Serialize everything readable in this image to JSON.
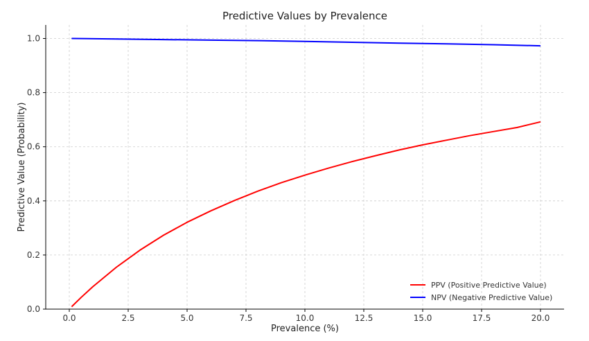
{
  "chart_data": {
    "type": "line",
    "title": "Predictive Values by Prevalence",
    "xlabel": "Prevalence (%)",
    "ylabel": "Predictive Value (Probability)",
    "xlim": [
      -1.0,
      21.0
    ],
    "ylim": [
      0.0,
      1.05
    ],
    "xticks": [
      0.0,
      2.5,
      5.0,
      7.5,
      10.0,
      12.5,
      15.0,
      17.5,
      20.0
    ],
    "xtick_labels": [
      "0.0",
      "2.5",
      "5.0",
      "7.5",
      "10.0",
      "12.5",
      "15.0",
      "17.5",
      "20.0"
    ],
    "yticks": [
      0.0,
      0.2,
      0.4,
      0.6,
      0.8,
      1.0
    ],
    "ytick_labels": [
      "0.0",
      "0.2",
      "0.4",
      "0.6",
      "0.8",
      "1.0"
    ],
    "grid": true,
    "legend_position": "bottom-right",
    "series": [
      {
        "name": "PPV (Positive Predictive Value)",
        "color": "#ff0000",
        "x": [
          0.1,
          0.5,
          1,
          2,
          3,
          4,
          5,
          6,
          7,
          8,
          9,
          10,
          11,
          12,
          13,
          14,
          15,
          16,
          17,
          18,
          19,
          20
        ],
        "y": [
          0.009,
          0.043,
          0.083,
          0.155,
          0.218,
          0.273,
          0.321,
          0.363,
          0.401,
          0.436,
          0.467,
          0.495,
          0.521,
          0.545,
          0.567,
          0.588,
          0.607,
          0.624,
          0.641,
          0.656,
          0.671,
          0.692
        ]
      },
      {
        "name": "NPV (Negative Predictive Value)",
        "color": "#0000ff",
        "x": [
          0.1,
          2,
          4,
          6,
          8,
          10,
          12,
          14,
          16,
          18,
          20
        ],
        "y": [
          1.0,
          0.998,
          0.996,
          0.994,
          0.992,
          0.989,
          0.986,
          0.983,
          0.98,
          0.977,
          0.973
        ]
      }
    ]
  }
}
